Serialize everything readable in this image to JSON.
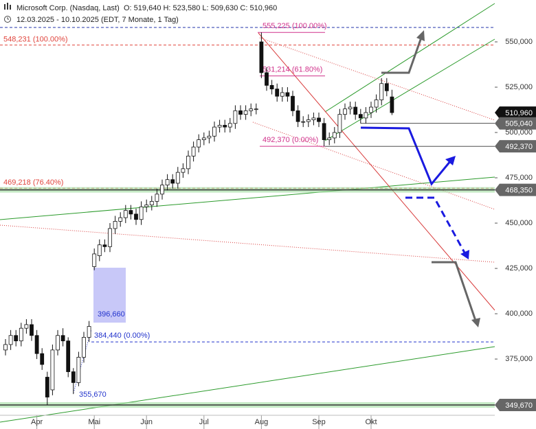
{
  "header": {
    "title": "Microsoft Corp. (Nasdaq, Last)",
    "ohlc": "O: 519,640   H: 523,580   L: 509,630   C: 510,960",
    "range": "12.03.2025 - 10.10.2025 (EDT, 7 Monate, 1 Tag)"
  },
  "chart_data": {
    "type": "candlestick",
    "categories": [
      null,
      null,
      null,
      null,
      null,
      null,
      "Apr",
      null,
      null,
      null,
      null,
      null,
      null,
      null,
      null,
      null,
      null,
      "Mai",
      null,
      null,
      null,
      null,
      null,
      null,
      null,
      null,
      null,
      "Jun",
      null,
      null,
      null,
      null,
      null,
      null,
      null,
      null,
      null,
      null,
      "Jul",
      null,
      null,
      null,
      null,
      null,
      null,
      null,
      null,
      null,
      null,
      "Aug",
      null,
      null,
      null,
      null,
      null,
      null,
      null,
      null,
      null,
      null,
      "Sep",
      null,
      null,
      null,
      null,
      null,
      null,
      null,
      null,
      null,
      "Okt",
      null,
      null,
      null,
      null
    ],
    "open": [
      380,
      383,
      388,
      385,
      392,
      394,
      388,
      378,
      365,
      358,
      380,
      388,
      385,
      368,
      362,
      376,
      387,
      426,
      432,
      438,
      437,
      447,
      451,
      453,
      457,
      455,
      452,
      459,
      460,
      462,
      466,
      471,
      474,
      472,
      478,
      480,
      487,
      492,
      496,
      497,
      498,
      503,
      504,
      503,
      505,
      512,
      510,
      512,
      513,
      550,
      533,
      526,
      524,
      520,
      522,
      520,
      512,
      506,
      506,
      507,
      508,
      505,
      496,
      497,
      500,
      510,
      513,
      514,
      510,
      508,
      511,
      514,
      518,
      527,
      519.64
    ],
    "high": [
      386,
      391,
      391,
      395,
      397,
      397,
      391,
      381,
      368,
      383,
      391,
      392,
      387,
      370,
      379,
      390,
      396,
      436,
      441,
      441,
      450,
      454,
      456,
      460,
      460,
      458,
      462,
      463,
      465,
      469,
      474,
      477,
      477,
      481,
      483,
      490,
      495,
      499,
      500,
      501,
      506,
      507,
      507,
      508,
      515,
      515,
      515,
      516,
      516,
      555.225,
      536,
      529,
      527,
      525,
      525,
      523,
      515,
      509,
      510,
      511,
      511,
      508,
      500,
      503,
      513,
      516,
      517,
      517,
      513,
      514,
      517,
      521,
      530,
      530,
      523.58
    ],
    "low": [
      377,
      380,
      382,
      382,
      389,
      385,
      375,
      369,
      349.67,
      355,
      377,
      382,
      365,
      355.67,
      360,
      373,
      384.44,
      424,
      429,
      434,
      434,
      444,
      448,
      450,
      452,
      449,
      449,
      456,
      457,
      459,
      463,
      468,
      469,
      469,
      475,
      477,
      484,
      489,
      493,
      494,
      495,
      500,
      500,
      500,
      502,
      507,
      507,
      509,
      510,
      530,
      523,
      521,
      517,
      517,
      517,
      509,
      503,
      503,
      503,
      504,
      503,
      492.37,
      493,
      494,
      497,
      507,
      510,
      507,
      505,
      505,
      508,
      511,
      515,
      520,
      509.63
    ],
    "close": [
      383,
      388,
      385,
      392,
      394,
      388,
      378,
      372,
      354,
      380,
      388,
      385,
      368,
      362,
      376,
      387,
      393,
      433,
      438,
      437,
      447,
      451,
      453,
      457,
      455,
      452,
      459,
      460,
      462,
      466,
      471,
      474,
      472,
      478,
      480,
      487,
      492,
      496,
      497,
      498,
      503,
      504,
      503,
      505,
      512,
      510,
      512,
      513,
      513,
      533,
      526,
      524,
      520,
      522,
      520,
      512,
      506,
      506,
      507,
      508,
      506,
      496,
      497,
      500,
      510,
      513,
      514,
      510,
      508,
      511,
      514,
      518,
      527,
      523,
      510.96
    ],
    "up_color": "#ffffff",
    "down_color": "#111111",
    "ylim": [
      336.4,
      573.1
    ],
    "yticks": [
      {
        "value": 375,
        "label": "375,000"
      },
      {
        "value": 400,
        "label": "400,000"
      },
      {
        "value": 425,
        "label": "425,000"
      },
      {
        "value": 450,
        "label": "450,000"
      },
      {
        "value": 475,
        "label": "475,000"
      },
      {
        "value": 500,
        "label": "500,000"
      },
      {
        "value": 525,
        "label": "525,000"
      },
      {
        "value": 550,
        "label": "550,000"
      }
    ],
    "levels": [
      {
        "value": 548.231,
        "label": "548,231 (100.00%)",
        "color": "#e0443c",
        "style": "dashed"
      },
      {
        "value": 555.225,
        "label": "555,225 (100.00%)",
        "color": "#d0308a",
        "style": "solid"
      },
      {
        "value": 531.214,
        "label": "531,214 (61.80%)",
        "color": "#d0308a",
        "style": "solid"
      },
      {
        "value": 492.37,
        "label": "492,370 (0.00%)",
        "color": "#d0308a",
        "style": "solid"
      },
      {
        "value": 469.218,
        "label": "469,218 (76.40%)",
        "color": "#e0443c",
        "style": "dashed"
      },
      {
        "value": 384.44,
        "label": "384,440 (0.00%)",
        "color": "#2233cc",
        "style": "dashed"
      }
    ],
    "notes": [
      {
        "value": 396.66,
        "label": "396,660"
      },
      {
        "value": 355.67,
        "label": "355,670"
      }
    ],
    "price_labels": [
      {
        "value": 510.96,
        "label": "510,960",
        "color": "#111111",
        "band": false
      },
      {
        "value": 505.04,
        "label": "505,040",
        "color": "#666666",
        "band": false
      },
      {
        "value": 492.37,
        "label": "492,370",
        "color": "#666666",
        "band": false
      },
      {
        "value": 468.35,
        "label": "468,350",
        "color": "#666666",
        "band": true
      },
      {
        "value": 349.67,
        "label": "349,670",
        "color": "#666666",
        "band": true
      }
    ]
  }
}
